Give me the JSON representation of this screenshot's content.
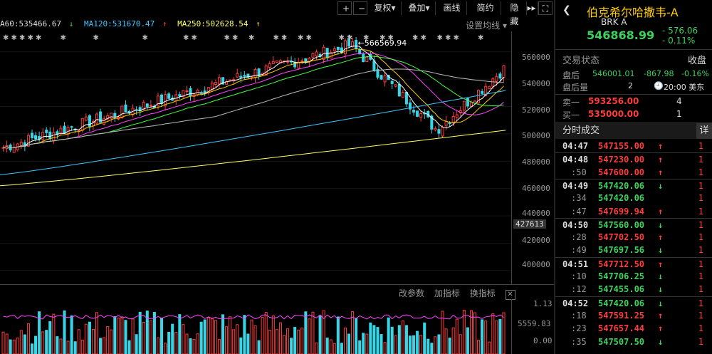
{
  "toolbar": {
    "zoom_in": "+",
    "zoom_out": "−",
    "fuquan": "复权",
    "diejia": "叠加",
    "huaxian": "画线",
    "jianyue": "简约",
    "yincang": "隐藏",
    "more": "▸▸",
    "expand": "⛶"
  },
  "ma_legend": [
    {
      "text": "A60:535466.67",
      "arrow": "↓",
      "color": "#dddddd"
    },
    {
      "text": "MA120:531670.47",
      "arrow": "↑",
      "color": "#3ec6ff"
    },
    {
      "text": "MA250:502628.54",
      "arrow": "↑",
      "color": "#ffff66"
    }
  ],
  "ma_setting": "设置均线",
  "price_axis": [
    "560000",
    "540000",
    "520000",
    "500000",
    "480000",
    "460000",
    "440000",
    "427613",
    "420000",
    "400000"
  ],
  "high_marker": "566569.94",
  "volume": {
    "btn_params": "改参数",
    "btn_add": "加指标",
    "btn_switch": "换指标",
    "close": "✕",
    "top": "1.13",
    "mid": "5559.83",
    "bottom": "0.00"
  },
  "stock": {
    "name": "伯克希尔哈撒韦-A",
    "code": "BRK A",
    "price": "546868.99",
    "change": "- 576.06",
    "change_pct": "- 0.11%"
  },
  "trade_status": {
    "label": "交易状态",
    "value": "收盘"
  },
  "after_hours": {
    "label": "盘后",
    "price": "546001.01",
    "change": "-867.98",
    "pct": "-0.16%"
  },
  "after_volume": {
    "label": "盘后量",
    "value": "2",
    "time": "20:00 美东"
  },
  "sell1": {
    "label": "卖一",
    "price": "593256.00",
    "vol": "4"
  },
  "buy1": {
    "label": "买一",
    "price": "535000.00",
    "vol": "1"
  },
  "ticks_header": {
    "label": "分时成交",
    "btn": "详"
  },
  "ticks": [
    {
      "time": "04:47",
      "price": "547155.00",
      "dir": "up",
      "vol": "1"
    },
    {
      "time": "04:48",
      "price": "547230.00",
      "dir": "up",
      "vol": "1"
    },
    {
      "time": ":50",
      "price": "547600.00",
      "dir": "up",
      "vol": "1"
    },
    {
      "time": "04:49",
      "price": "547420.06",
      "dir": "down",
      "vol": "1"
    },
    {
      "time": ":34",
      "price": "547420.06",
      "dir": "none",
      "vol": "1"
    },
    {
      "time": ":47",
      "price": "547699.94",
      "dir": "up",
      "vol": "1"
    },
    {
      "time": "04:50",
      "price": "547560.00",
      "dir": "down",
      "vol": "1"
    },
    {
      "time": ":28",
      "price": "547702.50",
      "dir": "up",
      "vol": "1"
    },
    {
      "time": ":49",
      "price": "547697.56",
      "dir": "down",
      "vol": "1"
    },
    {
      "time": "04:51",
      "price": "547712.50",
      "dir": "up",
      "vol": "1"
    },
    {
      "time": ":10",
      "price": "547706.25",
      "dir": "down",
      "vol": "1"
    },
    {
      "time": ":12",
      "price": "547455.06",
      "dir": "down",
      "vol": "1"
    },
    {
      "time": "04:52",
      "price": "547420.06",
      "dir": "down",
      "vol": "1"
    },
    {
      "time": ":18",
      "price": "547591.25",
      "dir": "up",
      "vol": "1"
    },
    {
      "time": ":23",
      "price": "547657.44",
      "dir": "up",
      "vol": "1"
    },
    {
      "time": ":35",
      "price": "547507.50",
      "dir": "down",
      "vol": "1"
    }
  ],
  "colors": {
    "up": "#ff3b3b",
    "down": "#3bd35b",
    "candle_up": "#ff3b3b",
    "candle_down": "#37d6e6"
  }
}
